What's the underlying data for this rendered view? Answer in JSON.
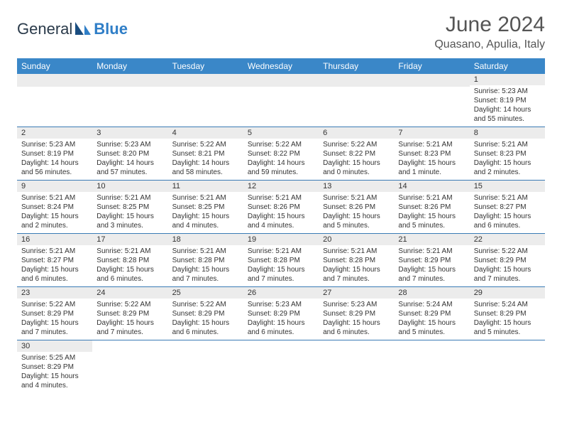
{
  "logo": {
    "text1": "General",
    "text2": "Blue"
  },
  "header": {
    "title": "June 2024",
    "location": "Quasano, Apulia, Italy"
  },
  "colors": {
    "header_bg": "#3a87c8",
    "header_text": "#ffffff",
    "daynum_bg": "#ececec",
    "row_border": "#3a7bb5",
    "title_color": "#555555",
    "logo_blue": "#2f7ec7",
    "text": "#333333"
  },
  "weekdays": [
    "Sunday",
    "Monday",
    "Tuesday",
    "Wednesday",
    "Thursday",
    "Friday",
    "Saturday"
  ],
  "weeks": [
    [
      null,
      null,
      null,
      null,
      null,
      null,
      {
        "d": "1",
        "sr": "5:23 AM",
        "ss": "8:19 PM",
        "dl": "14 hours and 55 minutes."
      }
    ],
    [
      {
        "d": "2",
        "sr": "5:23 AM",
        "ss": "8:19 PM",
        "dl": "14 hours and 56 minutes."
      },
      {
        "d": "3",
        "sr": "5:23 AM",
        "ss": "8:20 PM",
        "dl": "14 hours and 57 minutes."
      },
      {
        "d": "4",
        "sr": "5:22 AM",
        "ss": "8:21 PM",
        "dl": "14 hours and 58 minutes."
      },
      {
        "d": "5",
        "sr": "5:22 AM",
        "ss": "8:22 PM",
        "dl": "14 hours and 59 minutes."
      },
      {
        "d": "6",
        "sr": "5:22 AM",
        "ss": "8:22 PM",
        "dl": "15 hours and 0 minutes."
      },
      {
        "d": "7",
        "sr": "5:21 AM",
        "ss": "8:23 PM",
        "dl": "15 hours and 1 minute."
      },
      {
        "d": "8",
        "sr": "5:21 AM",
        "ss": "8:23 PM",
        "dl": "15 hours and 2 minutes."
      }
    ],
    [
      {
        "d": "9",
        "sr": "5:21 AM",
        "ss": "8:24 PM",
        "dl": "15 hours and 2 minutes."
      },
      {
        "d": "10",
        "sr": "5:21 AM",
        "ss": "8:25 PM",
        "dl": "15 hours and 3 minutes."
      },
      {
        "d": "11",
        "sr": "5:21 AM",
        "ss": "8:25 PM",
        "dl": "15 hours and 4 minutes."
      },
      {
        "d": "12",
        "sr": "5:21 AM",
        "ss": "8:26 PM",
        "dl": "15 hours and 4 minutes."
      },
      {
        "d": "13",
        "sr": "5:21 AM",
        "ss": "8:26 PM",
        "dl": "15 hours and 5 minutes."
      },
      {
        "d": "14",
        "sr": "5:21 AM",
        "ss": "8:26 PM",
        "dl": "15 hours and 5 minutes."
      },
      {
        "d": "15",
        "sr": "5:21 AM",
        "ss": "8:27 PM",
        "dl": "15 hours and 6 minutes."
      }
    ],
    [
      {
        "d": "16",
        "sr": "5:21 AM",
        "ss": "8:27 PM",
        "dl": "15 hours and 6 minutes."
      },
      {
        "d": "17",
        "sr": "5:21 AM",
        "ss": "8:28 PM",
        "dl": "15 hours and 6 minutes."
      },
      {
        "d": "18",
        "sr": "5:21 AM",
        "ss": "8:28 PM",
        "dl": "15 hours and 7 minutes."
      },
      {
        "d": "19",
        "sr": "5:21 AM",
        "ss": "8:28 PM",
        "dl": "15 hours and 7 minutes."
      },
      {
        "d": "20",
        "sr": "5:21 AM",
        "ss": "8:28 PM",
        "dl": "15 hours and 7 minutes."
      },
      {
        "d": "21",
        "sr": "5:21 AM",
        "ss": "8:29 PM",
        "dl": "15 hours and 7 minutes."
      },
      {
        "d": "22",
        "sr": "5:22 AM",
        "ss": "8:29 PM",
        "dl": "15 hours and 7 minutes."
      }
    ],
    [
      {
        "d": "23",
        "sr": "5:22 AM",
        "ss": "8:29 PM",
        "dl": "15 hours and 7 minutes."
      },
      {
        "d": "24",
        "sr": "5:22 AM",
        "ss": "8:29 PM",
        "dl": "15 hours and 7 minutes."
      },
      {
        "d": "25",
        "sr": "5:22 AM",
        "ss": "8:29 PM",
        "dl": "15 hours and 6 minutes."
      },
      {
        "d": "26",
        "sr": "5:23 AM",
        "ss": "8:29 PM",
        "dl": "15 hours and 6 minutes."
      },
      {
        "d": "27",
        "sr": "5:23 AM",
        "ss": "8:29 PM",
        "dl": "15 hours and 6 minutes."
      },
      {
        "d": "28",
        "sr": "5:24 AM",
        "ss": "8:29 PM",
        "dl": "15 hours and 5 minutes."
      },
      {
        "d": "29",
        "sr": "5:24 AM",
        "ss": "8:29 PM",
        "dl": "15 hours and 5 minutes."
      }
    ],
    [
      {
        "d": "30",
        "sr": "5:25 AM",
        "ss": "8:29 PM",
        "dl": "15 hours and 4 minutes."
      },
      null,
      null,
      null,
      null,
      null,
      null
    ]
  ],
  "labels": {
    "sunrise": "Sunrise:",
    "sunset": "Sunset:",
    "daylight": "Daylight:"
  }
}
